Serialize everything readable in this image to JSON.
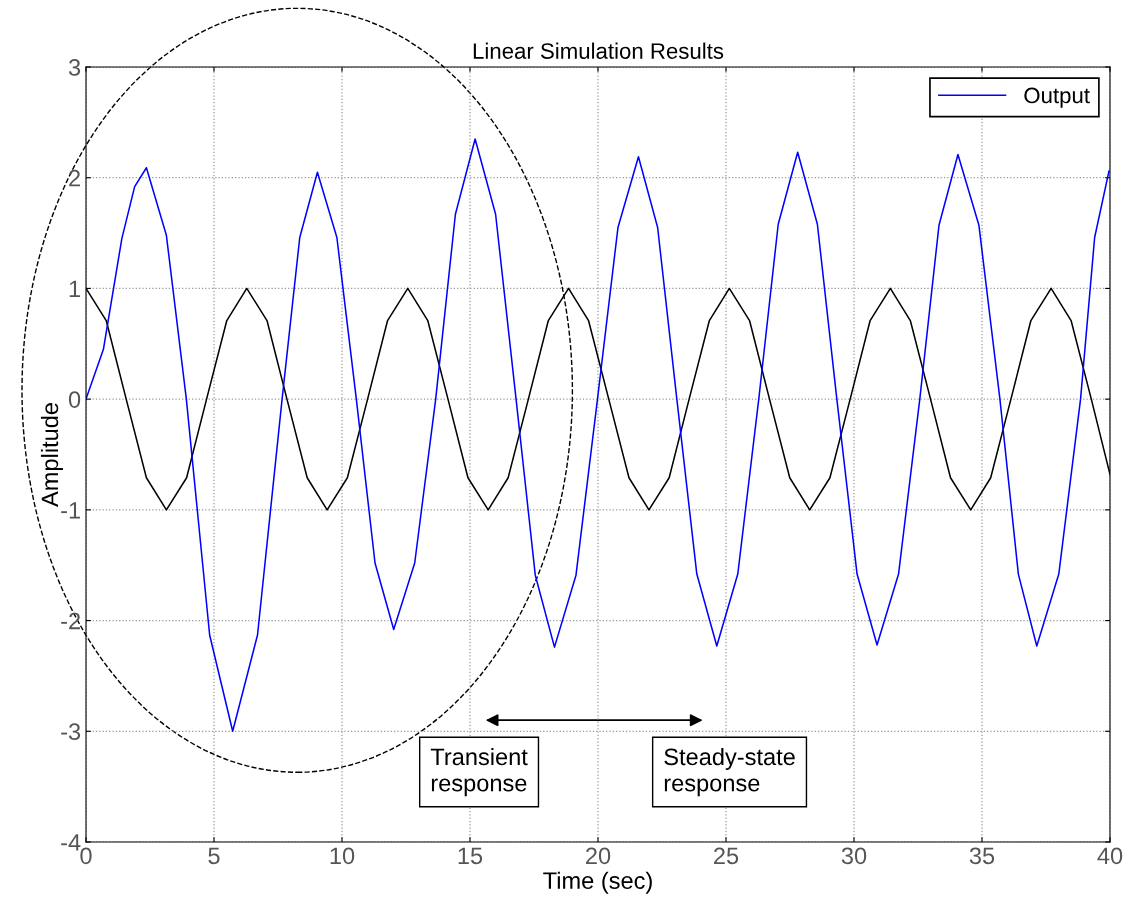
{
  "chart_data": {
    "type": "line",
    "title": "Linear Simulation Results",
    "xlabel": "Time (sec)",
    "ylabel": "Amplitude",
    "xlim": [
      0,
      40
    ],
    "ylim": [
      -4,
      3
    ],
    "xticks": [
      0,
      5,
      10,
      15,
      20,
      25,
      30,
      35,
      40
    ],
    "yticks": [
      -4,
      -3,
      -2,
      -1,
      0,
      1,
      2,
      3
    ],
    "grid": true,
    "legend": "top right",
    "marker": "none",
    "line_style": "solid",
    "series": [
      {
        "color": "#000000",
        "x": [
          0,
          0.79,
          1.57,
          2.36,
          3.14,
          3.93,
          4.71,
          5.5,
          6.28,
          7.07,
          7.85,
          8.64,
          9.42,
          10.21,
          11.0,
          11.78,
          12.57,
          13.35,
          14.14,
          14.92,
          15.71,
          16.49,
          17.28,
          18.06,
          18.85,
          19.63,
          20.42,
          21.21,
          21.99,
          22.78,
          23.56,
          24.35,
          25.13,
          25.92,
          26.7,
          27.49,
          28.27,
          29.06,
          29.85,
          30.63,
          31.42,
          32.2,
          32.99,
          33.77,
          34.56,
          35.34,
          36.13,
          36.91,
          37.7,
          38.48,
          39.27,
          40
        ],
        "values": [
          1,
          0.71,
          0,
          -0.71,
          -1,
          -0.71,
          0,
          0.71,
          1,
          0.71,
          0,
          -0.71,
          -1,
          -0.71,
          0,
          0.71,
          1,
          0.71,
          0,
          -0.71,
          -1,
          -0.71,
          0,
          0.71,
          1,
          0.71,
          0,
          -0.71,
          -1,
          -0.71,
          0,
          0.71,
          1,
          0.71,
          0,
          -0.71,
          -1,
          -0.71,
          0,
          0.71,
          1,
          0.71,
          0,
          -0.71,
          -1,
          -0.71,
          0,
          0.71,
          1,
          0.71,
          0,
          -0.68
        ]
      },
      {
        "name": "Output",
        "color": "#0000ff",
        "x": [
          0,
          0.68,
          1.4,
          1.9,
          2.36,
          3.14,
          3.92,
          4.83,
          5.73,
          6.7,
          7.66,
          8.35,
          9.04,
          9.8,
          10.56,
          11.29,
          12.02,
          12.84,
          13.66,
          14.43,
          15.2,
          16.0,
          16.8,
          17.55,
          18.3,
          19.14,
          19.98,
          20.78,
          21.58,
          22.33,
          23.08,
          23.86,
          24.64,
          25.46,
          26.28,
          27.04,
          27.8,
          28.57,
          29.33,
          30.12,
          30.9,
          31.74,
          32.57,
          33.32,
          34.06,
          34.88,
          35.7,
          36.42,
          37.14,
          38.0,
          38.85,
          39.4,
          39.96
        ],
        "values": [
          0,
          0.45,
          1.45,
          1.92,
          2.09,
          1.48,
          0,
          -2.13,
          -3.0,
          -2.13,
          0,
          1.46,
          2.05,
          1.46,
          0,
          -1.48,
          -2.08,
          -1.48,
          0,
          1.67,
          2.35,
          1.67,
          0,
          -1.59,
          -2.24,
          -1.59,
          0,
          1.55,
          2.19,
          1.55,
          0,
          -1.58,
          -2.23,
          -1.58,
          0,
          1.58,
          2.23,
          1.58,
          0,
          -1.58,
          -2.22,
          -1.58,
          0,
          1.57,
          2.21,
          1.57,
          0,
          -1.58,
          -2.23,
          -1.58,
          0,
          1.46,
          2.06
        ]
      }
    ],
    "annotations": [
      "Transient\nresponse",
      "Steady-state\nresponse"
    ]
  }
}
